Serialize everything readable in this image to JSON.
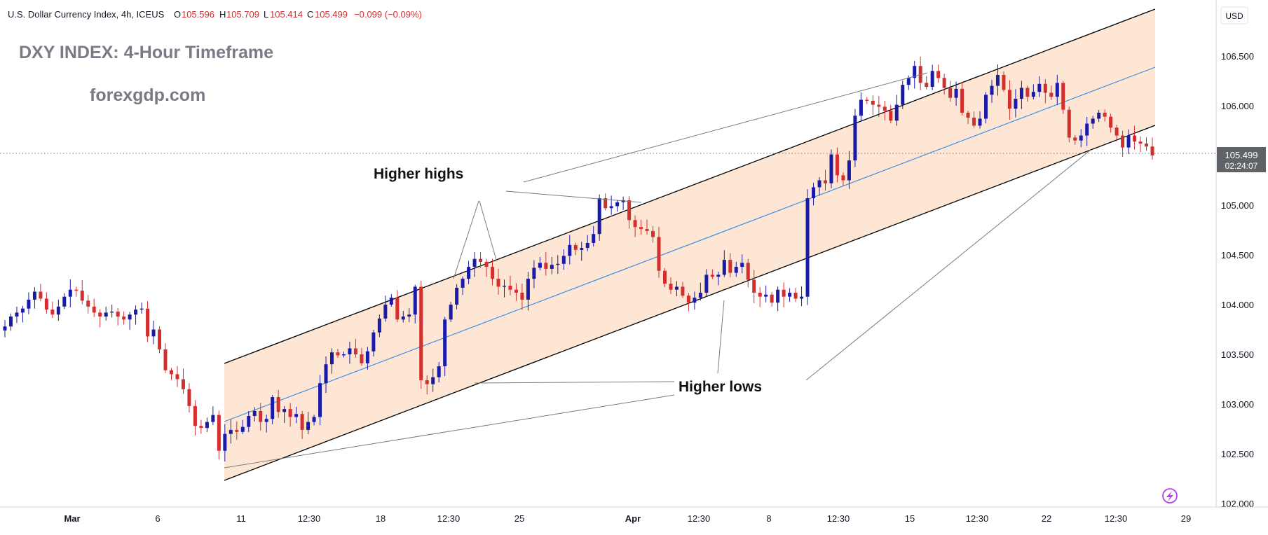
{
  "header": {
    "symbol": "U.S. Dollar Currency Index, 4h, ICEUS",
    "o_label": "O",
    "o_value": "105.596",
    "h_label": "H",
    "h_value": "105.709",
    "l_label": "L",
    "l_value": "105.414",
    "c_label": "C",
    "c_value": "105.499",
    "change": "−0.099 (−0.09%)"
  },
  "overlay": {
    "title": "DXY INDEX: 4-Hour Timeframe",
    "watermark": "forexgdp.com",
    "higher_highs": "Higher highs",
    "higher_lows": "Higher lows"
  },
  "price_axis": {
    "currency": "USD",
    "current_price": "105.499",
    "countdown": "02:24:07"
  },
  "colors": {
    "up_candle": "#1a1aa8",
    "down_candle": "#d32f2f",
    "channel_fill": "#fde3cc",
    "median_line": "#3d8fe0",
    "channel_border": "#000000",
    "price_tag": "#5f6368",
    "annotation_line": "#7a7a7a"
  },
  "icons": {
    "corner": "lightning-bolt-icon"
  },
  "chart_data": {
    "type": "candlestick",
    "title": "DXY INDEX: 4-Hour Timeframe",
    "instrument": "U.S. Dollar Currency Index",
    "timeframe": "4h",
    "exchange": "ICEUS",
    "ylim": [
      102.0,
      106.9
    ],
    "y_ticks": [
      "106.500",
      "106.000",
      "105.500",
      "105.000",
      "104.500",
      "104.000",
      "103.500",
      "103.000",
      "102.500",
      "102.000"
    ],
    "x_ticks": [
      "Mar",
      "6",
      "11",
      "12:30",
      "18",
      "12:30",
      "25",
      "Apr",
      "12:30",
      "8",
      "12:30",
      "15",
      "12:30",
      "22",
      "12:30",
      "29"
    ],
    "last_price": 105.499,
    "ohlc_last": {
      "open": 105.596,
      "high": 105.709,
      "low": 105.414,
      "close": 105.499
    },
    "candle_closes": [
      103.78,
      103.88,
      103.92,
      103.96,
      104.05,
      104.13,
      104.06,
      103.95,
      103.9,
      103.98,
      104.08,
      104.15,
      104.14,
      104.04,
      103.98,
      103.92,
      103.88,
      103.92,
      103.93,
      103.88,
      103.85,
      103.9,
      103.95,
      103.96,
      103.68,
      103.75,
      103.55,
      103.34,
      103.3,
      103.25,
      103.15,
      102.98,
      102.78,
      102.76,
      102.82,
      102.89,
      102.53,
      102.7,
      102.74,
      102.72,
      102.77,
      102.88,
      102.93,
      102.82,
      102.85,
      103.07,
      102.92,
      102.95,
      102.87,
      102.9,
      102.74,
      102.82,
      102.87,
      103.21,
      103.4,
      103.52,
      103.49,
      103.5,
      103.56,
      103.5,
      103.41,
      103.53,
      103.72,
      103.86,
      104.0,
      104.07,
      103.85,
      103.88,
      103.9,
      104.18,
      103.24,
      103.2,
      103.27,
      103.38,
      103.85,
      104.0,
      104.17,
      104.26,
      104.38,
      104.46,
      104.43,
      104.38,
      104.26,
      104.18,
      104.19,
      104.15,
      104.12,
      104.05,
      104.26,
      104.37,
      104.42,
      104.36,
      104.4,
      104.41,
      104.49,
      104.6,
      104.55,
      104.57,
      104.62,
      104.71,
      105.07,
      104.97,
      104.99,
      105.03,
      105.05,
      104.85,
      104.78,
      104.76,
      104.74,
      104.68,
      104.34,
      104.21,
      104.15,
      104.18,
      104.09,
      104.02,
      104.07,
      104.12,
      104.3,
      104.28,
      104.3,
      104.45,
      104.32,
      104.38,
      104.42,
      104.25,
      104.12,
      104.08,
      104.1,
      104.02,
      104.15,
      104.08,
      104.12,
      104.06,
      104.08,
      105.07,
      105.18,
      105.25,
      105.22,
      105.51,
      105.3,
      105.25,
      105.45,
      105.9,
      106.06,
      106.05,
      106.01,
      105.99,
      105.95,
      105.85,
      106.01,
      106.21,
      106.28,
      106.4,
      106.23,
      106.19,
      106.35,
      106.28,
      106.18,
      106.08,
      106.17,
      105.93,
      105.88,
      105.8,
      105.87,
      106.11,
      106.2,
      106.31,
      106.16,
      105.97,
      106.07,
      106.18,
      106.09,
      106.14,
      106.22,
      106.13,
      106.09,
      106.23,
      105.96,
      105.68,
      105.65,
      105.7,
      105.82,
      105.87,
      105.93,
      105.89,
      105.78,
      105.7,
      105.58,
      105.7,
      105.64,
      105.62,
      105.59,
      105.5
    ]
  }
}
